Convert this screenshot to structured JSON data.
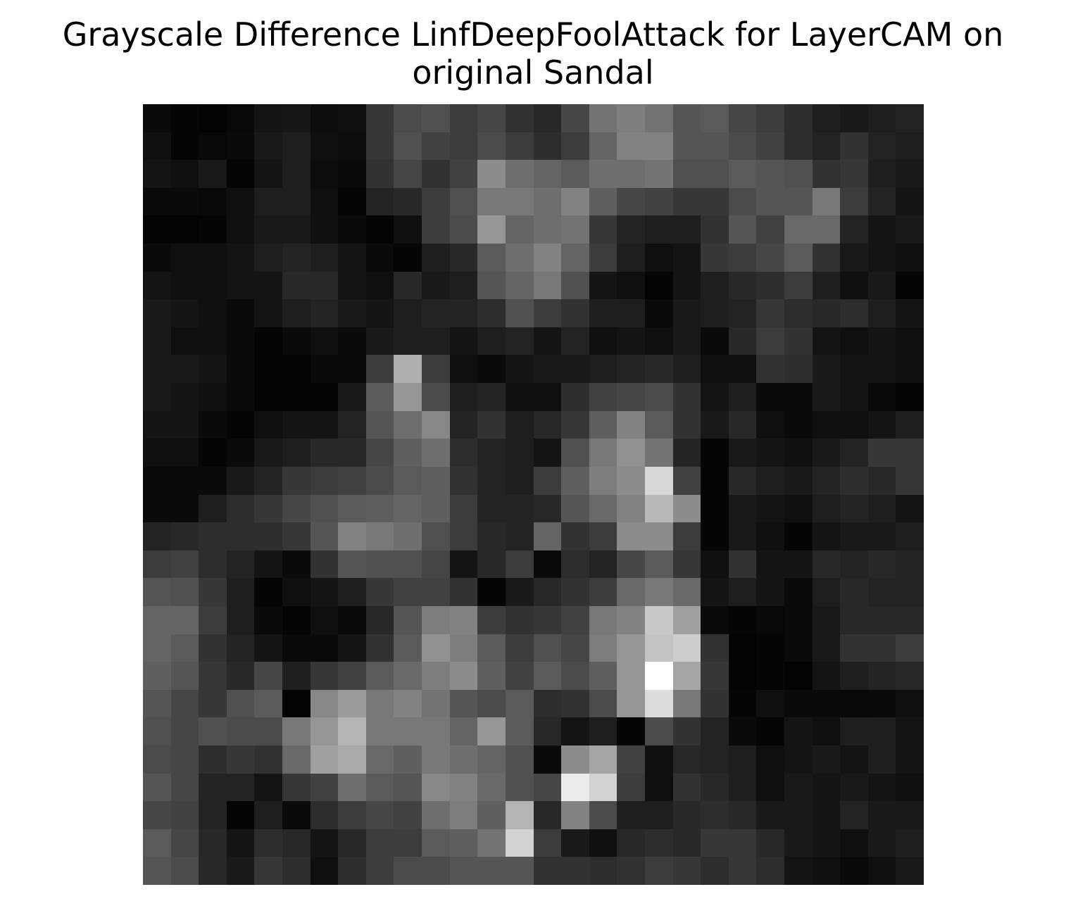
{
  "chart_data": {
    "type": "heatmap",
    "title_lines": [
      "Grayscale Difference LinfDeepFoolAttack for LayerCAM on",
      "original Sandal"
    ],
    "colormap": "gray",
    "colormap_low": "#000000",
    "colormap_high": "#ffffff",
    "vmin": 0,
    "vmax": 255,
    "rows": 28,
    "cols": 28,
    "axis": "off",
    "values": [
      [
        10,
        5,
        3,
        8,
        20,
        22,
        12,
        15,
        55,
        75,
        80,
        60,
        70,
        50,
        40,
        70,
        115,
        125,
        115,
        85,
        90,
        70,
        60,
        45,
        30,
        25,
        30,
        35
      ],
      [
        15,
        5,
        8,
        10,
        25,
        30,
        15,
        12,
        55,
        80,
        65,
        60,
        75,
        60,
        45,
        60,
        100,
        130,
        130,
        85,
        85,
        75,
        65,
        45,
        35,
        50,
        35,
        30
      ],
      [
        20,
        15,
        25,
        5,
        20,
        30,
        12,
        10,
        50,
        70,
        50,
        65,
        140,
        110,
        100,
        90,
        110,
        110,
        115,
        80,
        80,
        90,
        85,
        80,
        50,
        55,
        30,
        25
      ],
      [
        10,
        10,
        8,
        15,
        30,
        30,
        15,
        5,
        35,
        40,
        60,
        80,
        120,
        120,
        110,
        130,
        95,
        70,
        65,
        55,
        55,
        75,
        85,
        85,
        120,
        60,
        35,
        20
      ],
      [
        3,
        3,
        5,
        15,
        25,
        25,
        15,
        10,
        3,
        15,
        60,
        75,
        150,
        100,
        110,
        115,
        55,
        35,
        30,
        30,
        50,
        85,
        65,
        105,
        105,
        35,
        20,
        25
      ],
      [
        10,
        15,
        15,
        20,
        30,
        35,
        30,
        20,
        10,
        5,
        30,
        40,
        90,
        110,
        130,
        100,
        60,
        30,
        15,
        20,
        55,
        60,
        70,
        90,
        50,
        25,
        20,
        15
      ],
      [
        20,
        15,
        15,
        20,
        20,
        40,
        40,
        20,
        15,
        40,
        25,
        30,
        85,
        100,
        120,
        80,
        20,
        15,
        5,
        20,
        30,
        40,
        45,
        60,
        30,
        15,
        25,
        5
      ],
      [
        25,
        20,
        15,
        10,
        20,
        30,
        35,
        25,
        20,
        30,
        35,
        35,
        45,
        80,
        60,
        50,
        30,
        30,
        10,
        25,
        30,
        35,
        55,
        45,
        40,
        45,
        30,
        20
      ],
      [
        25,
        15,
        15,
        10,
        5,
        10,
        15,
        10,
        25,
        30,
        30,
        20,
        30,
        35,
        20,
        35,
        15,
        20,
        15,
        25,
        10,
        40,
        60,
        50,
        20,
        15,
        20,
        15
      ],
      [
        25,
        25,
        20,
        10,
        5,
        3,
        8,
        10,
        60,
        175,
        60,
        15,
        10,
        20,
        25,
        25,
        30,
        35,
        40,
        30,
        15,
        15,
        50,
        45,
        25,
        20,
        20,
        15
      ],
      [
        25,
        20,
        15,
        10,
        5,
        5,
        5,
        25,
        90,
        150,
        75,
        30,
        35,
        15,
        15,
        45,
        65,
        70,
        75,
        50,
        20,
        30,
        10,
        10,
        25,
        20,
        10,
        3
      ],
      [
        20,
        20,
        10,
        5,
        15,
        20,
        20,
        35,
        85,
        110,
        135,
        35,
        50,
        30,
        40,
        55,
        95,
        130,
        90,
        50,
        25,
        40,
        15,
        10,
        15,
        15,
        20,
        30
      ],
      [
        15,
        15,
        5,
        10,
        25,
        30,
        40,
        40,
        70,
        95,
        110,
        45,
        35,
        30,
        20,
        80,
        120,
        145,
        115,
        35,
        5,
        25,
        20,
        15,
        25,
        35,
        55,
        55
      ],
      [
        10,
        10,
        10,
        25,
        35,
        55,
        60,
        65,
        75,
        90,
        95,
        50,
        35,
        30,
        60,
        95,
        125,
        140,
        215,
        65,
        5,
        40,
        30,
        25,
        35,
        45,
        40,
        55
      ],
      [
        10,
        10,
        30,
        45,
        55,
        70,
        80,
        90,
        95,
        100,
        95,
        60,
        35,
        35,
        40,
        85,
        105,
        130,
        185,
        140,
        5,
        25,
        20,
        15,
        30,
        35,
        30,
        20
      ],
      [
        35,
        40,
        45,
        45,
        45,
        55,
        85,
        130,
        120,
        110,
        80,
        60,
        40,
        35,
        100,
        50,
        60,
        140,
        140,
        60,
        5,
        25,
        15,
        5,
        20,
        25,
        25,
        30
      ],
      [
        60,
        65,
        45,
        35,
        20,
        10,
        50,
        85,
        80,
        80,
        70,
        20,
        40,
        60,
        10,
        45,
        35,
        70,
        90,
        55,
        15,
        50,
        20,
        20,
        40,
        35,
        40,
        35
      ],
      [
        85,
        80,
        55,
        30,
        5,
        15,
        20,
        30,
        55,
        65,
        65,
        50,
        5,
        25,
        40,
        50,
        60,
        105,
        120,
        105,
        20,
        30,
        20,
        10,
        30,
        40,
        35,
        35
      ],
      [
        100,
        100,
        60,
        30,
        10,
        5,
        15,
        10,
        40,
        85,
        125,
        130,
        60,
        50,
        55,
        65,
        120,
        130,
        200,
        160,
        10,
        5,
        8,
        10,
        25,
        40,
        40,
        40
      ],
      [
        100,
        90,
        50,
        35,
        20,
        10,
        10,
        20,
        50,
        90,
        145,
        125,
        90,
        60,
        80,
        70,
        125,
        150,
        195,
        205,
        50,
        3,
        5,
        10,
        25,
        50,
        50,
        60
      ],
      [
        95,
        85,
        55,
        40,
        70,
        30,
        55,
        65,
        90,
        105,
        125,
        140,
        95,
        65,
        90,
        75,
        95,
        150,
        255,
        165,
        55,
        3,
        5,
        3,
        20,
        30,
        35,
        40
      ],
      [
        85,
        70,
        55,
        80,
        90,
        3,
        135,
        155,
        120,
        130,
        115,
        85,
        75,
        90,
        45,
        50,
        75,
        150,
        220,
        120,
        50,
        5,
        15,
        10,
        10,
        8,
        10,
        15
      ],
      [
        80,
        70,
        80,
        75,
        75,
        120,
        150,
        180,
        120,
        120,
        120,
        100,
        150,
        90,
        40,
        20,
        30,
        5,
        75,
        50,
        35,
        10,
        5,
        20,
        15,
        30,
        30,
        20
      ],
      [
        75,
        70,
        45,
        55,
        50,
        105,
        160,
        170,
        105,
        95,
        120,
        110,
        100,
        80,
        10,
        140,
        165,
        65,
        15,
        40,
        35,
        30,
        15,
        20,
        25,
        20,
        30,
        20
      ],
      [
        85,
        70,
        35,
        35,
        20,
        55,
        65,
        110,
        90,
        85,
        135,
        130,
        105,
        80,
        70,
        235,
        210,
        60,
        15,
        50,
        40,
        30,
        15,
        25,
        20,
        25,
        20,
        15
      ],
      [
        70,
        65,
        35,
        5,
        30,
        10,
        45,
        60,
        70,
        65,
        110,
        125,
        95,
        180,
        40,
        130,
        75,
        30,
        30,
        40,
        45,
        40,
        25,
        25,
        20,
        35,
        25,
        25
      ],
      [
        90,
        70,
        40,
        20,
        45,
        40,
        20,
        40,
        60,
        60,
        90,
        95,
        115,
        210,
        60,
        25,
        15,
        40,
        45,
        40,
        55,
        55,
        40,
        25,
        20,
        15,
        25,
        30
      ],
      [
        85,
        75,
        40,
        25,
        55,
        45,
        15,
        45,
        60,
        75,
        75,
        85,
        85,
        85,
        50,
        50,
        45,
        50,
        60,
        55,
        45,
        55,
        45,
        20,
        15,
        10,
        15,
        25
      ]
    ]
  }
}
